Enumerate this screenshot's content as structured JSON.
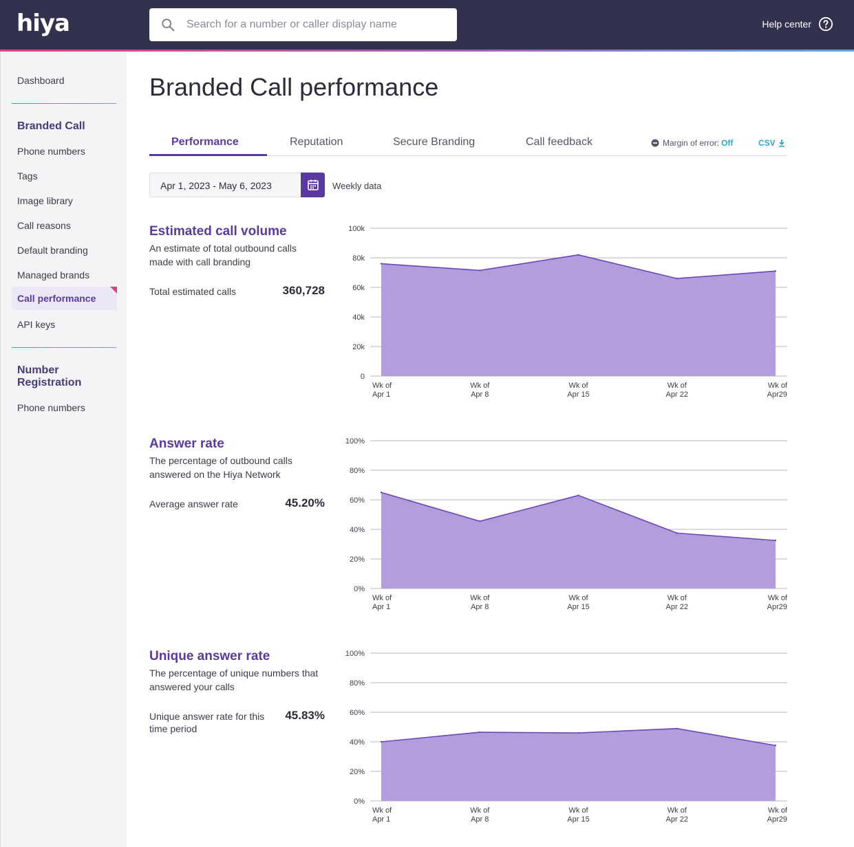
{
  "header": {
    "logo": "hiya",
    "search_placeholder": "Search for a number or caller display name",
    "help_label": "Help center"
  },
  "sidebar": {
    "dashboard": "Dashboard",
    "branded_call_heading": "Branded Call",
    "items": [
      "Phone numbers",
      "Tags",
      "Image library",
      "Call reasons",
      "Default branding",
      "Managed brands",
      "Call performance",
      "API keys"
    ],
    "active_item": "Call performance",
    "number_registration_heading_line1": "Number",
    "number_registration_heading_line2": "Registration",
    "number_registration_items": [
      "Phone numbers"
    ]
  },
  "page": {
    "title": "Branded Call performance",
    "tabs": [
      "Performance",
      "Reputation",
      "Secure Branding",
      "Call feedback"
    ],
    "active_tab": "Performance",
    "margin_of_error_label": "Margin of error:",
    "margin_of_error_value": "Off",
    "csv_label": "CSV",
    "date_range": "Apr 1, 2023 - May 6, 2023",
    "granularity": "Weekly data"
  },
  "metrics": [
    {
      "title": "Estimated call volume",
      "description": "An estimate of total outbound calls made with call branding",
      "stat_label": "Total estimated calls",
      "stat_value": "360,728"
    },
    {
      "title": "Answer rate",
      "description": "The percentage of outbound calls answered on the Hiya Network",
      "stat_label": "Average answer rate",
      "stat_value": "45.20%"
    },
    {
      "title": "Unique answer rate",
      "description": "The percentage of unique numbers that answered your calls",
      "stat_label": "Unique answer rate for this time period",
      "stat_value": "45.83%"
    }
  ],
  "colors": {
    "header_bg": "#33324e",
    "accent": "#5a3aa0",
    "area_fill": "#b39ddc",
    "area_line": "#6a46b8",
    "link": "#2fa6c8"
  },
  "chart_data": [
    {
      "type": "area",
      "x": [
        "Wk of|Apr 1",
        "Wk of|Apr 8",
        "Wk of|Apr 15",
        "Wk of|Apr 22",
        "Wk of|Apr29"
      ],
      "values": [
        76000,
        71500,
        82000,
        66000,
        71000
      ],
      "yticks": [
        "0",
        "20k",
        "40k",
        "60k",
        "80k",
        "100k"
      ],
      "ylim": [
        0,
        100000
      ]
    },
    {
      "type": "area",
      "x": [
        "Wk of|Apr 1",
        "Wk of|Apr 8",
        "Wk of|Apr 15",
        "Wk of|Apr 22",
        "Wk of|Apr29"
      ],
      "values": [
        65,
        45.5,
        63,
        37.5,
        32.5
      ],
      "yticks": [
        "0%",
        "20%",
        "40%",
        "60%",
        "80%",
        "100%"
      ],
      "ylim": [
        0,
        100
      ]
    },
    {
      "type": "area",
      "x": [
        "Wk of|Apr 1",
        "Wk of|Apr 8",
        "Wk of|Apr 15",
        "Wk of|Apr 22",
        "Wk of|Apr29"
      ],
      "values": [
        40,
        46.5,
        46,
        49,
        37.5
      ],
      "yticks": [
        "0%",
        "20%",
        "40%",
        "60%",
        "80%",
        "100%"
      ],
      "ylim": [
        0,
        100
      ]
    }
  ]
}
